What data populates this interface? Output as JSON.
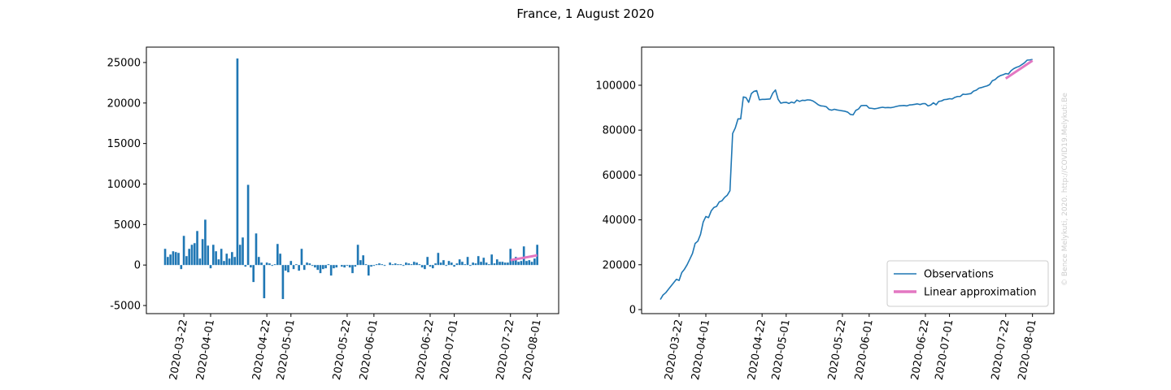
{
  "title": "France, 1 August 2020",
  "watermark": "© Bence Melykuti, 2020. http://COVID19.Melykuti.Be",
  "chart_data": [
    {
      "type": "bar",
      "xlim": [
        "2020-03-08",
        "2020-08-09"
      ],
      "xticks": [
        "2020-03-22",
        "2020-04-01",
        "2020-04-22",
        "2020-05-01",
        "2020-05-22",
        "2020-06-01",
        "2020-06-22",
        "2020-07-01",
        "2020-07-22",
        "2020-08-01"
      ],
      "ylim": [
        -6000,
        26900
      ],
      "yticks": [
        -5000,
        0,
        5000,
        10000,
        15000,
        20000,
        25000
      ],
      "grid": false,
      "series": [
        {
          "type": "bar",
          "color": "#1f77b4",
          "x": [
            "2020-03-15",
            "2020-03-16",
            "2020-03-17",
            "2020-03-18",
            "2020-03-19",
            "2020-03-20",
            "2020-03-21",
            "2020-03-22",
            "2020-03-23",
            "2020-03-24",
            "2020-03-25",
            "2020-03-26",
            "2020-03-27",
            "2020-03-28",
            "2020-03-29",
            "2020-03-30",
            "2020-03-31",
            "2020-04-01",
            "2020-04-02",
            "2020-04-03",
            "2020-04-04",
            "2020-04-05",
            "2020-04-06",
            "2020-04-07",
            "2020-04-08",
            "2020-04-09",
            "2020-04-10",
            "2020-04-11",
            "2020-04-12",
            "2020-04-13",
            "2020-04-14",
            "2020-04-15",
            "2020-04-16",
            "2020-04-17",
            "2020-04-18",
            "2020-04-19",
            "2020-04-20",
            "2020-04-21",
            "2020-04-22",
            "2020-04-23",
            "2020-04-24",
            "2020-04-25",
            "2020-04-26",
            "2020-04-27",
            "2020-04-28",
            "2020-04-29",
            "2020-04-30",
            "2020-05-01",
            "2020-05-02",
            "2020-05-03",
            "2020-05-04",
            "2020-05-05",
            "2020-05-06",
            "2020-05-07",
            "2020-05-08",
            "2020-05-09",
            "2020-05-10",
            "2020-05-11",
            "2020-05-12",
            "2020-05-13",
            "2020-05-14",
            "2020-05-15",
            "2020-05-16",
            "2020-05-17",
            "2020-05-18",
            "2020-05-19",
            "2020-05-20",
            "2020-05-21",
            "2020-05-22",
            "2020-05-23",
            "2020-05-24",
            "2020-05-25",
            "2020-05-26",
            "2020-05-27",
            "2020-05-28",
            "2020-05-29",
            "2020-05-30",
            "2020-05-31",
            "2020-06-01",
            "2020-06-02",
            "2020-06-03",
            "2020-06-04",
            "2020-06-05",
            "2020-06-06",
            "2020-06-07",
            "2020-06-08",
            "2020-06-09",
            "2020-06-10",
            "2020-06-11",
            "2020-06-12",
            "2020-06-13",
            "2020-06-14",
            "2020-06-15",
            "2020-06-16",
            "2020-06-17",
            "2020-06-18",
            "2020-06-19",
            "2020-06-20",
            "2020-06-21",
            "2020-06-22",
            "2020-06-23",
            "2020-06-24",
            "2020-06-25",
            "2020-06-26",
            "2020-06-27",
            "2020-06-28",
            "2020-06-29",
            "2020-06-30",
            "2020-07-01",
            "2020-07-02",
            "2020-07-03",
            "2020-07-04",
            "2020-07-05",
            "2020-07-06",
            "2020-07-07",
            "2020-07-08",
            "2020-07-09",
            "2020-07-10",
            "2020-07-11",
            "2020-07-12",
            "2020-07-13",
            "2020-07-14",
            "2020-07-15",
            "2020-07-16",
            "2020-07-17",
            "2020-07-18",
            "2020-07-19",
            "2020-07-20",
            "2020-07-21",
            "2020-07-22",
            "2020-07-23",
            "2020-07-24",
            "2020-07-25",
            "2020-07-26",
            "2020-07-27",
            "2020-07-28",
            "2020-07-29",
            "2020-07-30",
            "2020-07-31",
            "2020-08-01"
          ],
          "values": [
            2000,
            1000,
            1300,
            1700,
            1600,
            1500,
            -500,
            3600,
            1100,
            2000,
            2500,
            2700,
            4200,
            800,
            3200,
            5600,
            2400,
            -400,
            2500,
            1700,
            700,
            2000,
            500,
            1400,
            800,
            1600,
            1000,
            25500,
            2500,
            3400,
            -200,
            9900,
            -300,
            -2100,
            3900,
            1000,
            300,
            -4100,
            300,
            200,
            -100,
            100,
            2600,
            1400,
            -4200,
            -700,
            -900,
            500,
            -500,
            100,
            -700,
            2000,
            -600,
            300,
            200,
            -100,
            -300,
            -600,
            -1000,
            -500,
            -400,
            100,
            -1300,
            -400,
            -300,
            0,
            -200,
            -300,
            -100,
            -300,
            -1000,
            -200,
            2500,
            600,
            1200,
            100,
            -1300,
            -200,
            -100,
            100,
            200,
            100,
            -100,
            0,
            300,
            100,
            200,
            100,
            100,
            -100,
            300,
            200,
            100,
            400,
            300,
            100,
            -300,
            -500,
            1000,
            -200,
            -400,
            200,
            1500,
            300,
            600,
            -100,
            500,
            300,
            -200,
            200,
            700,
            400,
            100,
            1000,
            -100,
            300,
            200,
            1100,
            400,
            900,
            300,
            100,
            1300,
            200,
            700,
            400,
            400,
            300,
            300,
            2000,
            700,
            1000,
            400,
            500,
            2300,
            500,
            600,
            400,
            800,
            2500
          ]
        },
        {
          "type": "line",
          "color": "#e377c2",
          "x": [
            "2020-07-22",
            "2020-08-01"
          ],
          "values": [
            600,
            1200
          ]
        }
      ]
    },
    {
      "type": "line",
      "xlim": [
        "2020-03-08",
        "2020-08-09"
      ],
      "xticks": [
        "2020-03-22",
        "2020-04-01",
        "2020-04-22",
        "2020-05-01",
        "2020-05-22",
        "2020-06-01",
        "2020-06-22",
        "2020-07-01",
        "2020-07-22",
        "2020-08-01"
      ],
      "ylim": [
        -1800,
        117000
      ],
      "yticks": [
        0,
        20000,
        40000,
        60000,
        80000,
        100000
      ],
      "grid": false,
      "legend": "lower right",
      "series": [
        {
          "type": "line",
          "name": "Observations",
          "color": "#1f77b4",
          "x": [
            "2020-03-15",
            "2020-03-16",
            "2020-03-17",
            "2020-03-18",
            "2020-03-19",
            "2020-03-20",
            "2020-03-21",
            "2020-03-22",
            "2020-03-23",
            "2020-03-24",
            "2020-03-25",
            "2020-03-26",
            "2020-03-27",
            "2020-03-28",
            "2020-03-29",
            "2020-03-30",
            "2020-03-31",
            "2020-04-01",
            "2020-04-02",
            "2020-04-03",
            "2020-04-04",
            "2020-04-05",
            "2020-04-06",
            "2020-04-07",
            "2020-04-08",
            "2020-04-09",
            "2020-04-10",
            "2020-04-11",
            "2020-04-12",
            "2020-04-13",
            "2020-04-14",
            "2020-04-15",
            "2020-04-16",
            "2020-04-17",
            "2020-04-18",
            "2020-04-19",
            "2020-04-20",
            "2020-04-21",
            "2020-04-22",
            "2020-04-23",
            "2020-04-24",
            "2020-04-25",
            "2020-04-26",
            "2020-04-27",
            "2020-04-28",
            "2020-04-29",
            "2020-04-30",
            "2020-05-01",
            "2020-05-02",
            "2020-05-03",
            "2020-05-04",
            "2020-05-05",
            "2020-05-06",
            "2020-05-07",
            "2020-05-08",
            "2020-05-09",
            "2020-05-10",
            "2020-05-11",
            "2020-05-12",
            "2020-05-13",
            "2020-05-14",
            "2020-05-15",
            "2020-05-16",
            "2020-05-17",
            "2020-05-18",
            "2020-05-19",
            "2020-05-20",
            "2020-05-21",
            "2020-05-22",
            "2020-05-23",
            "2020-05-24",
            "2020-05-25",
            "2020-05-26",
            "2020-05-27",
            "2020-05-28",
            "2020-05-29",
            "2020-05-30",
            "2020-05-31",
            "2020-06-01",
            "2020-06-02",
            "2020-06-03",
            "2020-06-04",
            "2020-06-05",
            "2020-06-06",
            "2020-06-07",
            "2020-06-08",
            "2020-06-09",
            "2020-06-10",
            "2020-06-11",
            "2020-06-12",
            "2020-06-13",
            "2020-06-14",
            "2020-06-15",
            "2020-06-16",
            "2020-06-17",
            "2020-06-18",
            "2020-06-19",
            "2020-06-20",
            "2020-06-21",
            "2020-06-22",
            "2020-06-23",
            "2020-06-24",
            "2020-06-25",
            "2020-06-26",
            "2020-06-27",
            "2020-06-28",
            "2020-06-29",
            "2020-06-30",
            "2020-07-01",
            "2020-07-02",
            "2020-07-03",
            "2020-07-04",
            "2020-07-05",
            "2020-07-06",
            "2020-07-07",
            "2020-07-08",
            "2020-07-09",
            "2020-07-10",
            "2020-07-11",
            "2020-07-12",
            "2020-07-13",
            "2020-07-14",
            "2020-07-15",
            "2020-07-16",
            "2020-07-17",
            "2020-07-18",
            "2020-07-19",
            "2020-07-20",
            "2020-07-21",
            "2020-07-22",
            "2020-07-23",
            "2020-07-24",
            "2020-07-25",
            "2020-07-26",
            "2020-07-27",
            "2020-07-28",
            "2020-07-29",
            "2020-07-30",
            "2020-07-31",
            "2020-08-01"
          ],
          "values": [
            4500,
            6500,
            7500,
            9000,
            10500,
            12000,
            13500,
            13000,
            16500,
            18000,
            20000,
            22500,
            25000,
            29500,
            30500,
            33500,
            39000,
            41500,
            41000,
            44000,
            45500,
            46000,
            48000,
            48500,
            50000,
            51000,
            53000,
            78500,
            81000,
            85000,
            85000,
            94800,
            94500,
            92400,
            96300,
            97300,
            97600,
            93500,
            93700,
            93700,
            93800,
            93900,
            96500,
            97900,
            93700,
            92000,
            92300,
            92400,
            91900,
            92500,
            92100,
            93400,
            92800,
            93300,
            93200,
            93500,
            93400,
            93000,
            92200,
            91300,
            90800,
            90700,
            90400,
            89200,
            88900,
            89300,
            89000,
            88800,
            88600,
            88400,
            88000,
            87000,
            86800,
            88800,
            89400,
            90900,
            91000,
            91000,
            89800,
            89700,
            89500,
            89700,
            90000,
            90200,
            90000,
            90100,
            90000,
            90200,
            90500,
            90800,
            90900,
            91000,
            90800,
            91200,
            91300,
            91500,
            91700,
            91400,
            91800,
            91800,
            90800,
            91200,
            92200,
            91300,
            92800,
            93000,
            93600,
            93700,
            94000,
            93900,
            94600,
            95000,
            95000,
            96000,
            95900,
            96100,
            96300,
            97400,
            97800,
            98700,
            99000,
            99400,
            99700,
            100300,
            102000,
            102500,
            103600,
            104300,
            104700,
            105200,
            105000,
            106500,
            107400,
            108000,
            108400,
            109200,
            110000,
            111200,
            111300,
            111500
          ]
        },
        {
          "type": "line",
          "name": "Linear approximation",
          "color": "#e377c2",
          "x": [
            "2020-07-22",
            "2020-08-01"
          ],
          "values": [
            103000,
            111000
          ]
        }
      ]
    }
  ]
}
